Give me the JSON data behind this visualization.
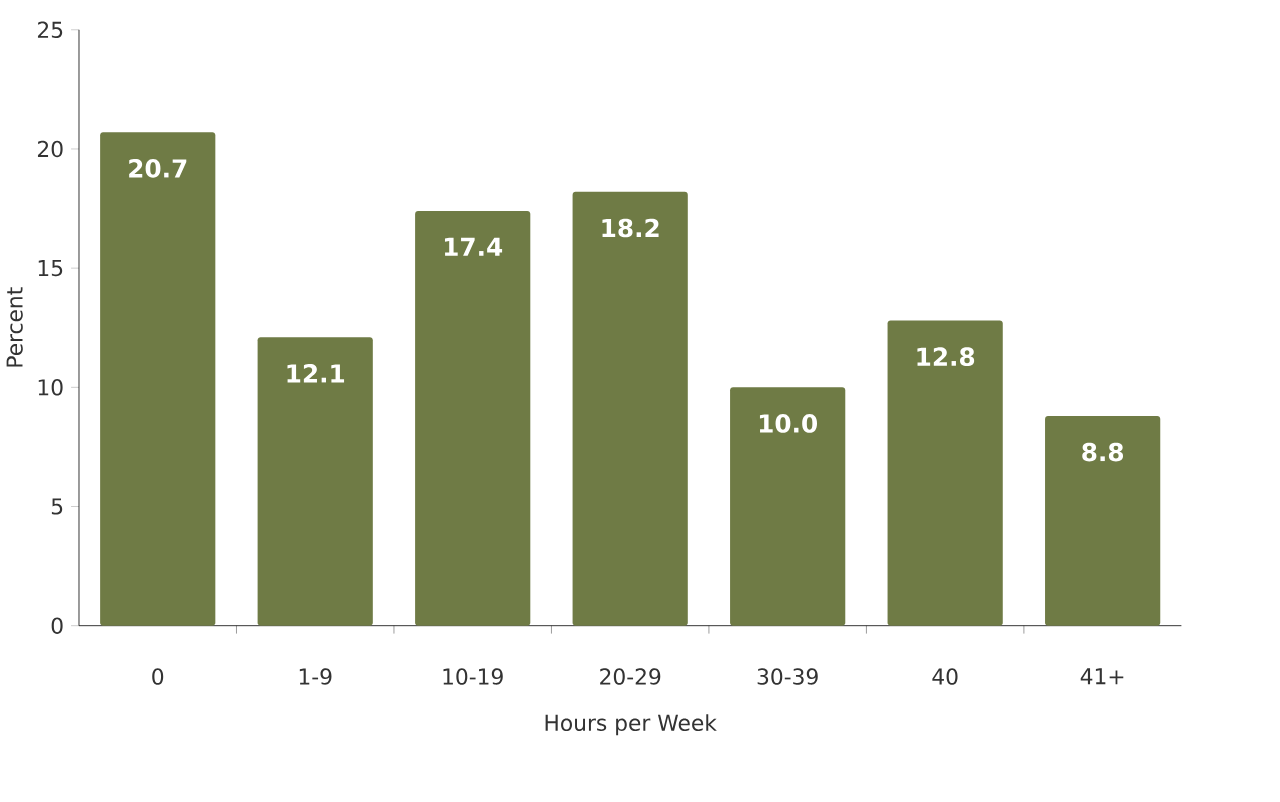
{
  "chart_data": {
    "type": "bar",
    "xlabel": "Hours per Week",
    "ylabel": "Percent",
    "categories": [
      "0",
      "1-9",
      "10-19",
      "20-29",
      "30-39",
      "40",
      "41+"
    ],
    "values": [
      20.7,
      12.1,
      17.4,
      18.2,
      10.0,
      12.8,
      8.8
    ],
    "value_labels": [
      "20.7",
      "12.1",
      "17.4",
      "18.2",
      "10.0",
      "12.8",
      "8.8"
    ],
    "color": "#6f7b45",
    "ylim": [
      0,
      25
    ],
    "yticks": [
      0,
      5,
      10,
      15,
      20,
      25
    ]
  }
}
